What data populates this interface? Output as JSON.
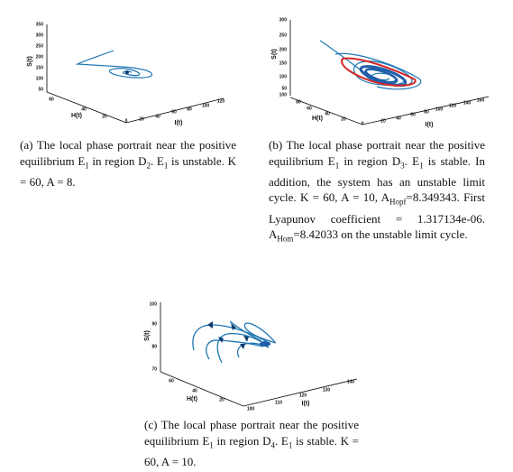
{
  "panels": [
    {
      "s_label": "S(t)",
      "h_label": "H(t)",
      "i_label": "I(t)",
      "s_ticks": [
        350,
        300,
        250,
        200,
        150,
        100,
        50
      ],
      "h_ticks": [
        60,
        40,
        20
      ],
      "i_ticks": [
        0,
        20,
        40,
        60,
        80,
        100,
        120
      ],
      "caption": [
        "(a) The local phase portrait near the positive equilibrium E",
        "1",
        " in region D",
        "2",
        ". E",
        "1",
        " is unstable. K = 60, A = 8."
      ]
    },
    {
      "s_label": "S(t)",
      "h_label": "H(t)",
      "i_label": "I(t)",
      "s_ticks": [
        300,
        250,
        200,
        150,
        100,
        50,
        100
      ],
      "h_ticks": [
        80,
        60,
        40,
        20
      ],
      "i_ticks": [
        0,
        20,
        40,
        60,
        80,
        100,
        120,
        140,
        160
      ],
      "caption": [
        "(b) The local phase portrait near the positive equilibrium E",
        "1",
        " in region D",
        "3",
        ". E",
        "1",
        " is stable. In addition, the system has an unstable limit cycle. K = 60, A = 10, A",
        "Hopf",
        "=8.349343. First Lyapunov coefficient = 1.317134e-06. A",
        "Hom",
        "=8.42033 on the unstable limit cycle."
      ]
    },
    {
      "s_label": "S(t)",
      "h_label": "H(t)",
      "i_label": "I(t)",
      "s_ticks": [
        100,
        90,
        80,
        70
      ],
      "h_ticks": [
        60,
        40,
        20
      ],
      "i_ticks": [
        100,
        110,
        120,
        130,
        140
      ],
      "caption": [
        "(c) The local phase portrait near the positive equilibrium E",
        "1",
        " in region D",
        "4",
        ". E",
        "1",
        " is stable. K = 60, A = 10."
      ]
    }
  ]
}
